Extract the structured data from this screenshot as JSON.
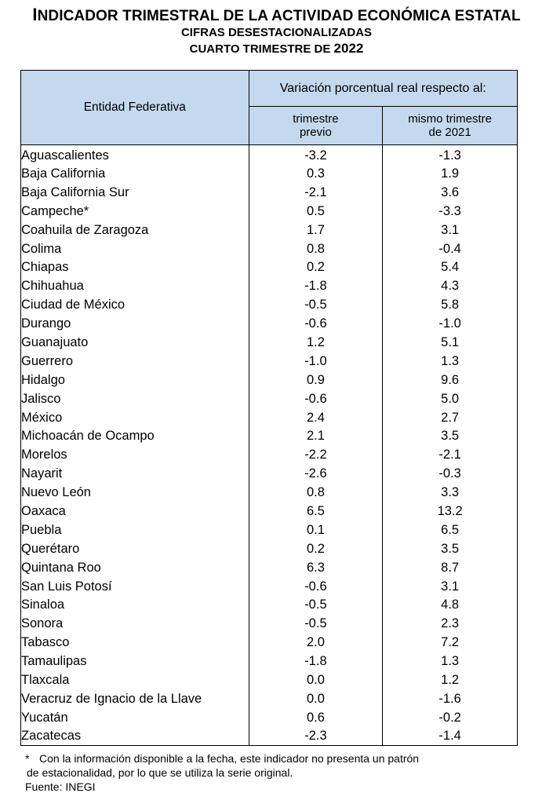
{
  "title_prefix": "I",
  "title_rest": "NDICADOR TRIMESTRAL DE LA ACTIVIDAD ECONÓMICA ESTATAL",
  "subtitle1": "CIFRAS DESESTACIONALIZADAS",
  "subtitle2_text": "CUARTO TRIMESTRE DE ",
  "subtitle2_year": "2022",
  "table": {
    "col_entity": "Entidad Federativa",
    "col_group": "Variación porcentual real respecto al:",
    "col1_line1": "trimestre",
    "col1_line2": "previo",
    "col2_line1": "mismo trimestre",
    "col2_line2": "de 2021",
    "rows": [
      {
        "name": "Aguascalientes",
        "prev": "-3.2",
        "year": "-1.3"
      },
      {
        "name": "Baja California",
        "prev": "0.3",
        "year": "1.9"
      },
      {
        "name": "Baja California Sur",
        "prev": "-2.1",
        "year": "3.6"
      },
      {
        "name": "Campeche*",
        "prev": "0.5",
        "year": "-3.3"
      },
      {
        "name": "Coahuila de Zaragoza",
        "prev": "1.7",
        "year": "3.1"
      },
      {
        "name": "Colima",
        "prev": "0.8",
        "year": "-0.4"
      },
      {
        "name": "Chiapas",
        "prev": "0.2",
        "year": "5.4"
      },
      {
        "name": "Chihuahua",
        "prev": "-1.8",
        "year": "4.3"
      },
      {
        "name": "Ciudad de México",
        "prev": "-0.5",
        "year": "5.8"
      },
      {
        "name": "Durango",
        "prev": "-0.6",
        "year": "-1.0"
      },
      {
        "name": "Guanajuato",
        "prev": "1.2",
        "year": "5.1"
      },
      {
        "name": "Guerrero",
        "prev": "-1.0",
        "year": "1.3"
      },
      {
        "name": "Hidalgo",
        "prev": "0.9",
        "year": "9.6"
      },
      {
        "name": "Jalisco",
        "prev": "-0.6",
        "year": "5.0"
      },
      {
        "name": "México",
        "prev": "2.4",
        "year": "2.7"
      },
      {
        "name": "Michoacán de Ocampo",
        "prev": "2.1",
        "year": "3.5"
      },
      {
        "name": "Morelos",
        "prev": "-2.2",
        "year": "-2.1"
      },
      {
        "name": "Nayarit",
        "prev": "-2.6",
        "year": "-0.3"
      },
      {
        "name": "Nuevo León",
        "prev": "0.8",
        "year": "3.3"
      },
      {
        "name": "Oaxaca",
        "prev": "6.5",
        "year": "13.2"
      },
      {
        "name": "Puebla",
        "prev": "0.1",
        "year": "6.5"
      },
      {
        "name": "Querétaro",
        "prev": "0.2",
        "year": "3.5"
      },
      {
        "name": "Quintana Roo",
        "prev": "6.3",
        "year": "8.7"
      },
      {
        "name": "San Luis Potosí",
        "prev": "-0.6",
        "year": "3.1"
      },
      {
        "name": "Sinaloa",
        "prev": "-0.5",
        "year": "4.8"
      },
      {
        "name": "Sonora",
        "prev": "-0.5",
        "year": "2.3"
      },
      {
        "name": "Tabasco",
        "prev": "2.0",
        "year": "7.2"
      },
      {
        "name": "Tamaulipas",
        "prev": "-1.8",
        "year": "1.3"
      },
      {
        "name": "Tlaxcala",
        "prev": "0.0",
        "year": "1.2"
      },
      {
        "name": "Veracruz de Ignacio de la Llave",
        "prev": "0.0",
        "year": "-1.6"
      },
      {
        "name": "Yucatán",
        "prev": "0.6",
        "year": "-0.2"
      },
      {
        "name": "Zacatecas",
        "prev": "-2.3",
        "year": "-1.4"
      }
    ]
  },
  "footnote_marker": "*",
  "footnote_line1": "Con la información disponible a la fecha, este indicador no presenta un patrón",
  "footnote_line2": "de estacionalidad, por lo que se utiliza la serie original.",
  "source": "Fuente: INEGI"
}
